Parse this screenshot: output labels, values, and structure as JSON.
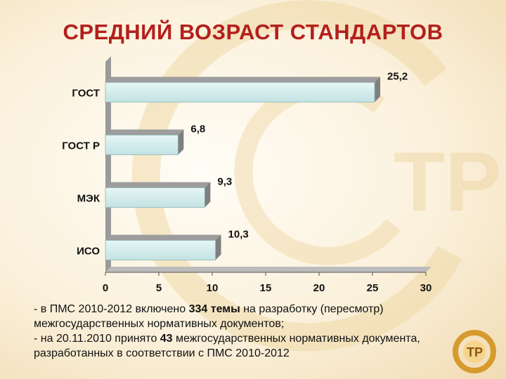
{
  "title": "СРЕДНИЙ ВОЗРАСТ СТАНДАРТОВ",
  "chart_data": {
    "type": "bar",
    "orientation": "horizontal",
    "categories": [
      "ГОСТ",
      "ГОСТ Р",
      "МЭК",
      "ИСО"
    ],
    "values": [
      25.2,
      6.8,
      9.3,
      10.3
    ],
    "value_labels": [
      "25,2",
      "6,8",
      "9,3",
      "10,3"
    ],
    "xlim": [
      0,
      30
    ],
    "xticks": [
      0,
      5,
      10,
      15,
      20,
      25,
      30
    ],
    "bar_color": "#cfe8e8",
    "grid": false,
    "legend": "none"
  },
  "notes": {
    "line1_a": "- в ПМС 2010-2012 включено ",
    "line1_b": "334 темы",
    "line1_c": " на разработку (пересмотр) межгосударственных нормативных документов;",
    "line2_a": "- на 20.11.2010 принято ",
    "line2_b": "43",
    "line2_c": " межгосударственных нормативных документа, разработанных в соответствии с ПМС 2010-2012"
  },
  "colors": {
    "title": "#b3201c",
    "accent": "#e8a93a"
  }
}
